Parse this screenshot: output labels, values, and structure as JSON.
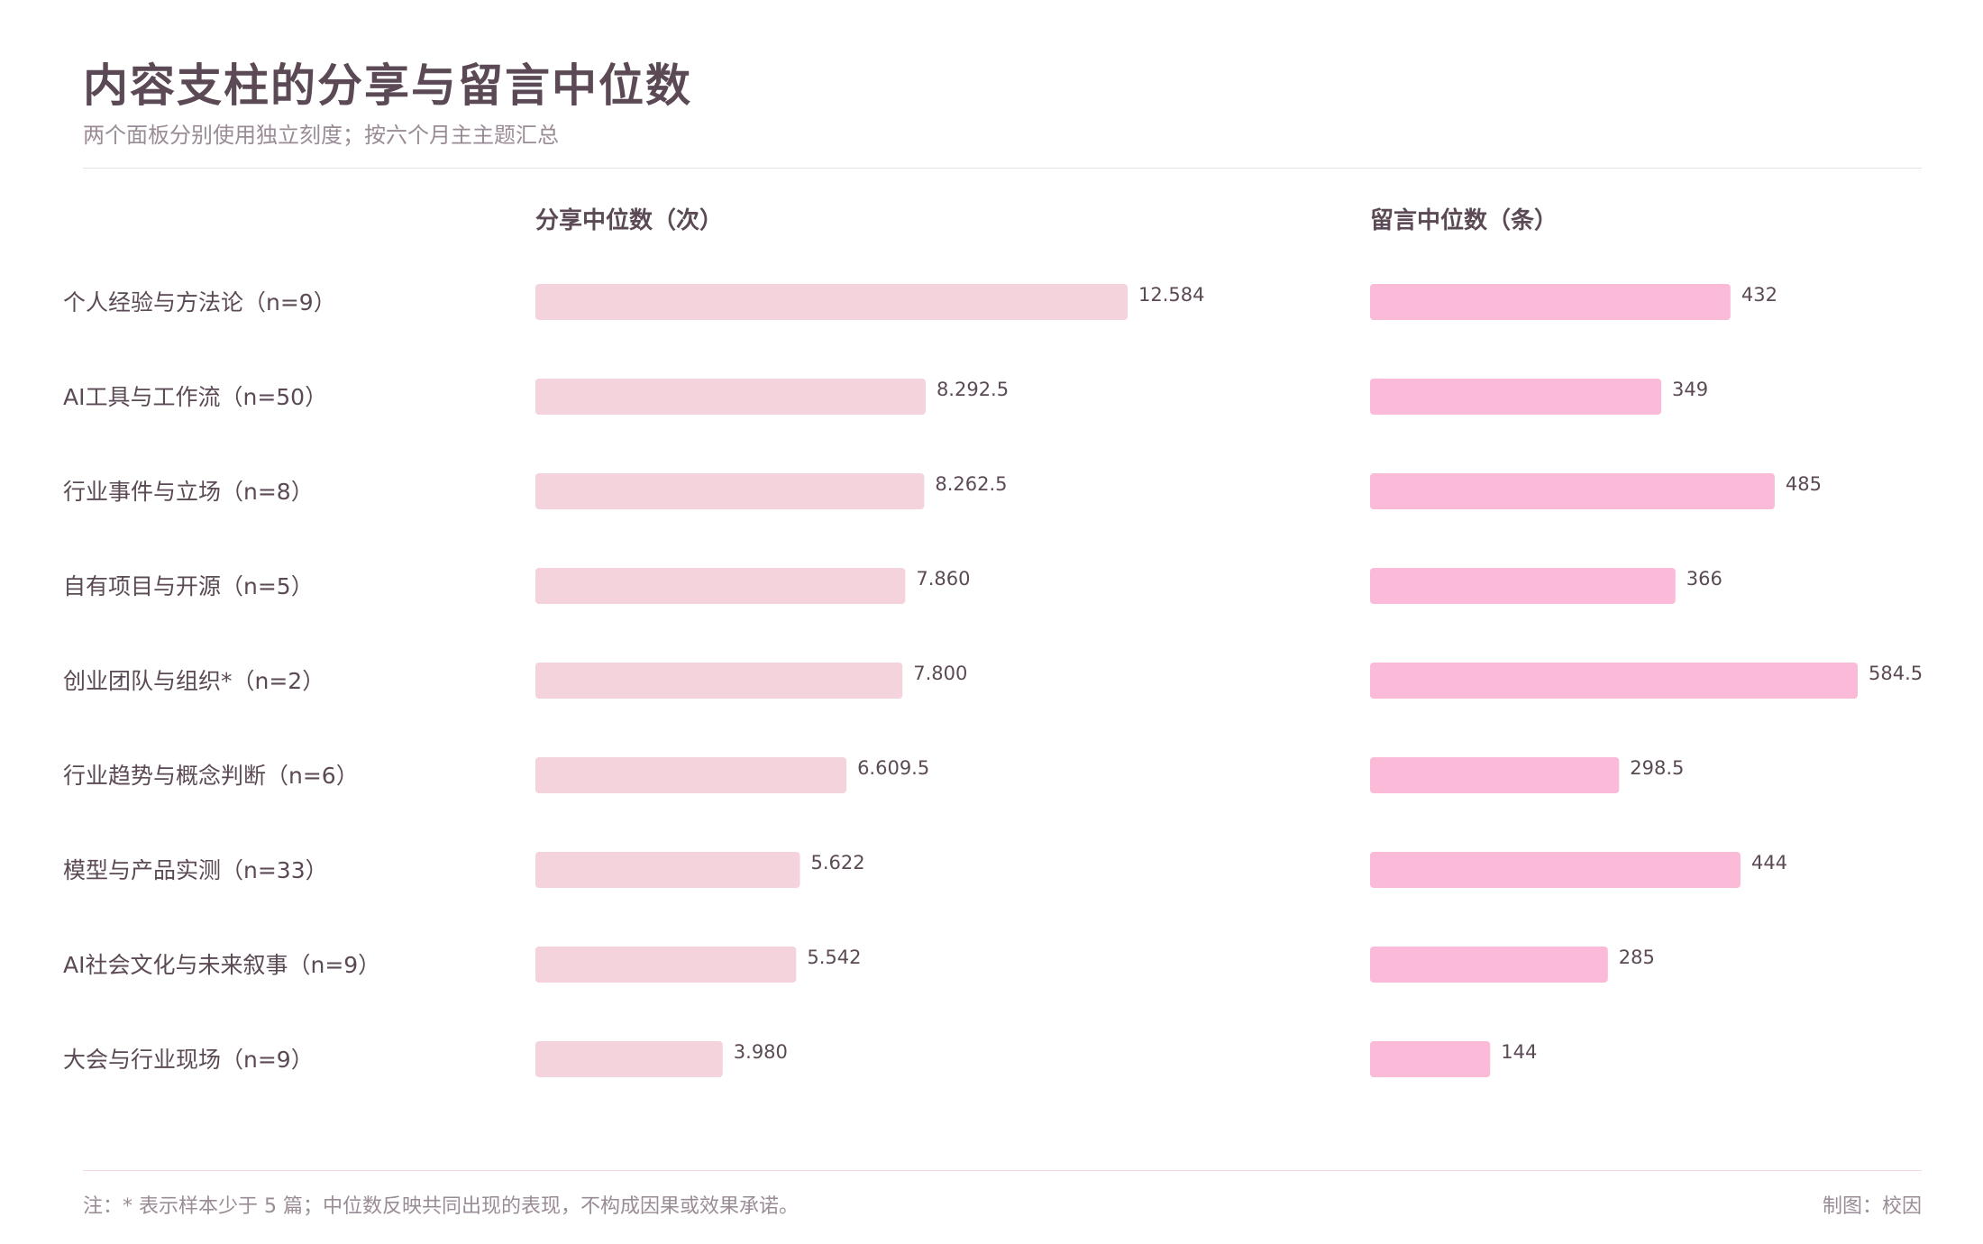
{
  "title": "内容支柱的分享与留言中位数",
  "subtitle": "两个面板分别使用独立刻度；按六个月主主题汇总",
  "footnote": "注：* 表示样本少于 5 篇；中位数反映共同出现的表现，不构成因果或效果承诺。",
  "credit": "制图：校因",
  "colors": {
    "shares_bar": "#f4d3dd",
    "comments_bar": "#fbbad7",
    "text": "#5b4a55",
    "muted": "#9a8c96"
  },
  "chart_data": [
    {
      "type": "bar",
      "orientation": "horizontal",
      "title": "分享中位数（次）",
      "categories": [
        "个人经验与方法论（n=9）",
        "AI工具与工作流（n=50）",
        "行业事件与立场（n=8）",
        "自有项目与开源（n=5）",
        "创业团队与组织*（n=2）",
        "行业趋势与概念判断（n=6）",
        "模型与产品实测（n=33）",
        "AI社会文化与未来叙事（n=9）",
        "大会与行业现场（n=9）"
      ],
      "values": [
        12584,
        8292.5,
        8262.5,
        7860,
        7800,
        6609.5,
        5622,
        5542,
        3980
      ],
      "value_labels": [
        "12.584",
        "8.292.5",
        "8.262.5",
        "7.860",
        "7.800",
        "6.609.5",
        "5.622",
        "5.542",
        "3.980"
      ],
      "xlim": [
        0,
        12584
      ],
      "grid": false
    },
    {
      "type": "bar",
      "orientation": "horizontal",
      "title": "留言中位数（条）",
      "categories": [
        "个人经验与方法论（n=9）",
        "AI工具与工作流（n=50）",
        "行业事件与立场（n=8）",
        "自有项目与开源（n=5）",
        "创业团队与组织*（n=2）",
        "行业趋势与概念判断（n=6）",
        "模型与产品实测（n=33）",
        "AI社会文化与未来叙事（n=9）",
        "大会与行业现场（n=9）"
      ],
      "values": [
        432,
        349,
        485,
        366,
        584.5,
        298.5,
        444,
        285,
        144
      ],
      "value_labels": [
        "432",
        "349",
        "485",
        "366",
        "584.5",
        "298.5",
        "444",
        "285",
        "144"
      ],
      "xlim": [
        0,
        584.5
      ],
      "grid": false
    }
  ]
}
